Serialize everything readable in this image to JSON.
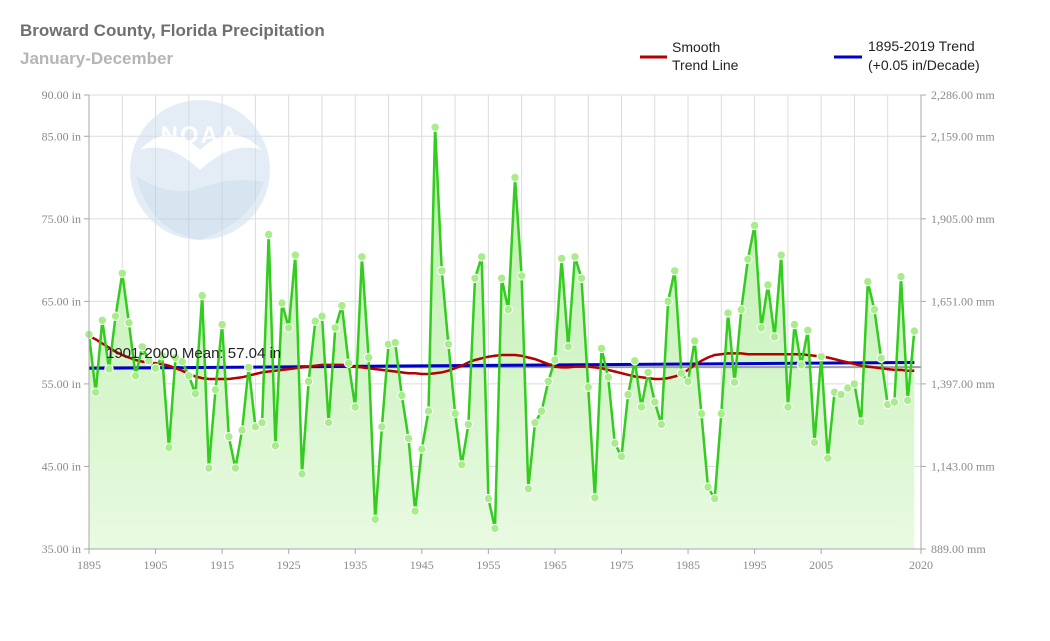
{
  "header": {
    "title": "Broward County, Florida Precipitation",
    "subtitle": "January-December"
  },
  "legend": {
    "smooth": {
      "line1": "Smooth",
      "line2": "Trend Line",
      "color": "#b30000"
    },
    "trend": {
      "line1": "1895-2019 Trend",
      "line2": "(+0.05 in/Decade)",
      "color": "#0000c8"
    }
  },
  "colors": {
    "series_line": "#33cc1f",
    "marker_fill": "#a8ec8c",
    "area_top": "#b8efa8",
    "area_bottom": "#e9fae2",
    "mean_line": "#9e9e9e",
    "watermark": "#cfe0ee"
  },
  "watermark": {
    "icon": "noaa-logo-icon"
  },
  "chart_data": {
    "type": "line",
    "title": "Broward County, Florida Precipitation",
    "subtitle": "January-December",
    "x": [
      1895,
      1896,
      1897,
      1898,
      1899,
      1900,
      1901,
      1902,
      1903,
      1904,
      1905,
      1906,
      1907,
      1908,
      1909,
      1910,
      1911,
      1912,
      1913,
      1914,
      1915,
      1916,
      1917,
      1918,
      1919,
      1920,
      1921,
      1922,
      1923,
      1924,
      1925,
      1926,
      1927,
      1928,
      1929,
      1930,
      1931,
      1932,
      1933,
      1934,
      1935,
      1936,
      1937,
      1938,
      1939,
      1940,
      1941,
      1942,
      1943,
      1944,
      1945,
      1946,
      1947,
      1948,
      1949,
      1950,
      1951,
      1952,
      1953,
      1954,
      1955,
      1956,
      1957,
      1958,
      1959,
      1960,
      1961,
      1962,
      1963,
      1964,
      1965,
      1966,
      1967,
      1968,
      1969,
      1970,
      1971,
      1972,
      1973,
      1974,
      1975,
      1976,
      1977,
      1978,
      1979,
      1980,
      1981,
      1982,
      1983,
      1984,
      1985,
      1986,
      1987,
      1988,
      1989,
      1990,
      1991,
      1992,
      1993,
      1994,
      1995,
      1996,
      1997,
      1998,
      1999,
      2000,
      2001,
      2002,
      2003,
      2004,
      2005,
      2006,
      2007,
      2008,
      2009,
      2010,
      2011,
      2012,
      2013,
      2014,
      2015,
      2016,
      2017,
      2018,
      2019
    ],
    "series": [
      {
        "values": [
          61.0,
          54.0,
          62.7,
          56.8,
          63.2,
          68.4,
          62.4,
          56.0,
          59.5,
          57.8,
          56.9,
          58.4,
          47.3,
          58.2,
          57.7,
          56.0,
          53.8,
          65.7,
          44.8,
          54.3,
          62.2,
          48.6,
          44.8,
          49.4,
          57.0,
          49.8,
          50.3,
          73.1,
          47.5,
          64.8,
          61.8,
          70.6,
          44.1,
          55.3,
          62.6,
          63.2,
          50.3,
          61.8,
          64.5,
          57.5,
          52.2,
          70.4,
          58.2,
          38.6,
          49.8,
          59.8,
          60.0,
          53.6,
          48.4,
          39.6,
          47.1,
          51.7,
          86.1,
          68.7,
          59.8,
          51.4,
          45.2,
          50.1,
          67.8,
          70.4,
          41.1,
          37.5,
          67.8,
          64.0,
          80.0,
          68.1,
          42.3,
          50.3,
          51.7,
          55.3,
          57.9,
          70.2,
          59.5,
          70.4,
          67.8,
          54.6,
          41.2,
          59.3,
          55.8,
          47.8,
          46.2,
          53.7,
          57.8,
          52.2,
          56.4,
          52.8,
          50.1,
          65.0,
          68.7,
          56.3,
          55.3,
          60.2,
          51.4,
          42.5,
          41.1,
          51.4,
          63.6,
          55.2,
          64.0,
          70.1,
          74.2,
          61.8,
          67.0,
          60.7,
          70.6,
          52.2,
          62.2,
          57.3,
          61.5,
          47.9,
          58.3,
          46.0,
          54.0,
          53.7,
          54.5,
          55.0,
          50.4,
          67.4,
          64.0,
          58.1,
          52.5,
          52.8,
          68.0,
          53.0,
          61.4
        ]
      },
      {
        "name": "Smooth Trend Line",
        "values": [
          60.8,
          60.4,
          59.9,
          59.4,
          58.9,
          58.5,
          58.2,
          57.9,
          57.7,
          57.6,
          57.5,
          57.4,
          57.2,
          56.9,
          56.6,
          56.2,
          55.9,
          55.7,
          55.6,
          55.6,
          55.6,
          55.6,
          55.7,
          55.8,
          56.0,
          56.2,
          56.4,
          56.5,
          56.6,
          56.7,
          56.8,
          56.9,
          57.0,
          57.1,
          57.2,
          57.3,
          57.3,
          57.3,
          57.3,
          57.2,
          57.1,
          57.0,
          56.9,
          56.8,
          56.7,
          56.6,
          56.5,
          56.4,
          56.3,
          56.3,
          56.2,
          56.2,
          56.3,
          56.4,
          56.6,
          56.9,
          57.2,
          57.6,
          57.9,
          58.1,
          58.3,
          58.4,
          58.5,
          58.5,
          58.5,
          58.4,
          58.2,
          58.0,
          57.7,
          57.4,
          57.1,
          57.0,
          57.0,
          57.1,
          57.1,
          57.1,
          57.0,
          56.9,
          56.7,
          56.5,
          56.3,
          56.1,
          55.9,
          55.8,
          55.7,
          55.6,
          55.6,
          55.7,
          55.9,
          56.2,
          56.7,
          57.3,
          57.8,
          58.2,
          58.5,
          58.6,
          58.7,
          58.7,
          58.7,
          58.6,
          58.6,
          58.6,
          58.6,
          58.6,
          58.6,
          58.6,
          58.6,
          58.6,
          58.5,
          58.4,
          58.3,
          58.2,
          58.0,
          57.8,
          57.6,
          57.4,
          57.2,
          57.1,
          57.0,
          56.9,
          56.8,
          56.7,
          56.7,
          56.6,
          56.6
        ]
      }
    ],
    "trend": {
      "name": "1895-2019 Trend (+0.05 in/Decade)",
      "rate_in_per_decade": 0.05,
      "start": [
        1895,
        56.9
      ],
      "end": [
        2019,
        57.6
      ]
    },
    "mean": {
      "label": "1901-2000 Mean: 57.04 in",
      "value": 57.04
    },
    "xlim": [
      1895,
      2020
    ],
    "ylim": [
      35,
      90
    ],
    "x_ticks": [
      "1895",
      "1905",
      "1915",
      "1925",
      "1935",
      "1945",
      "1955",
      "1965",
      "1975",
      "1985",
      "1995",
      "2005",
      "2020"
    ],
    "y_ticks": [
      {
        "value": 35,
        "label": "35.00 in"
      },
      {
        "value": 45,
        "label": "45.00 in"
      },
      {
        "value": 55,
        "label": "55.00 in"
      },
      {
        "value": 65,
        "label": "65.00 in"
      },
      {
        "value": 75,
        "label": "75.00 in"
      },
      {
        "value": 85,
        "label": "85.00 in"
      },
      {
        "value": 90,
        "label": "90.00 in"
      }
    ],
    "y2_ticks": [
      {
        "value": 35,
        "label": "889.00 mm"
      },
      {
        "value": 45,
        "label": "1,143.00 mm"
      },
      {
        "value": 55,
        "label": "1,397.00 mm"
      },
      {
        "value": 65,
        "label": "1,651.00 mm"
      },
      {
        "value": 75,
        "label": "1,905.00 mm"
      },
      {
        "value": 85,
        "label": "2,159.00 mm"
      },
      {
        "value": 90,
        "label": "2,286.00 mm"
      }
    ],
    "grid": true,
    "legend_position": "top-right"
  }
}
